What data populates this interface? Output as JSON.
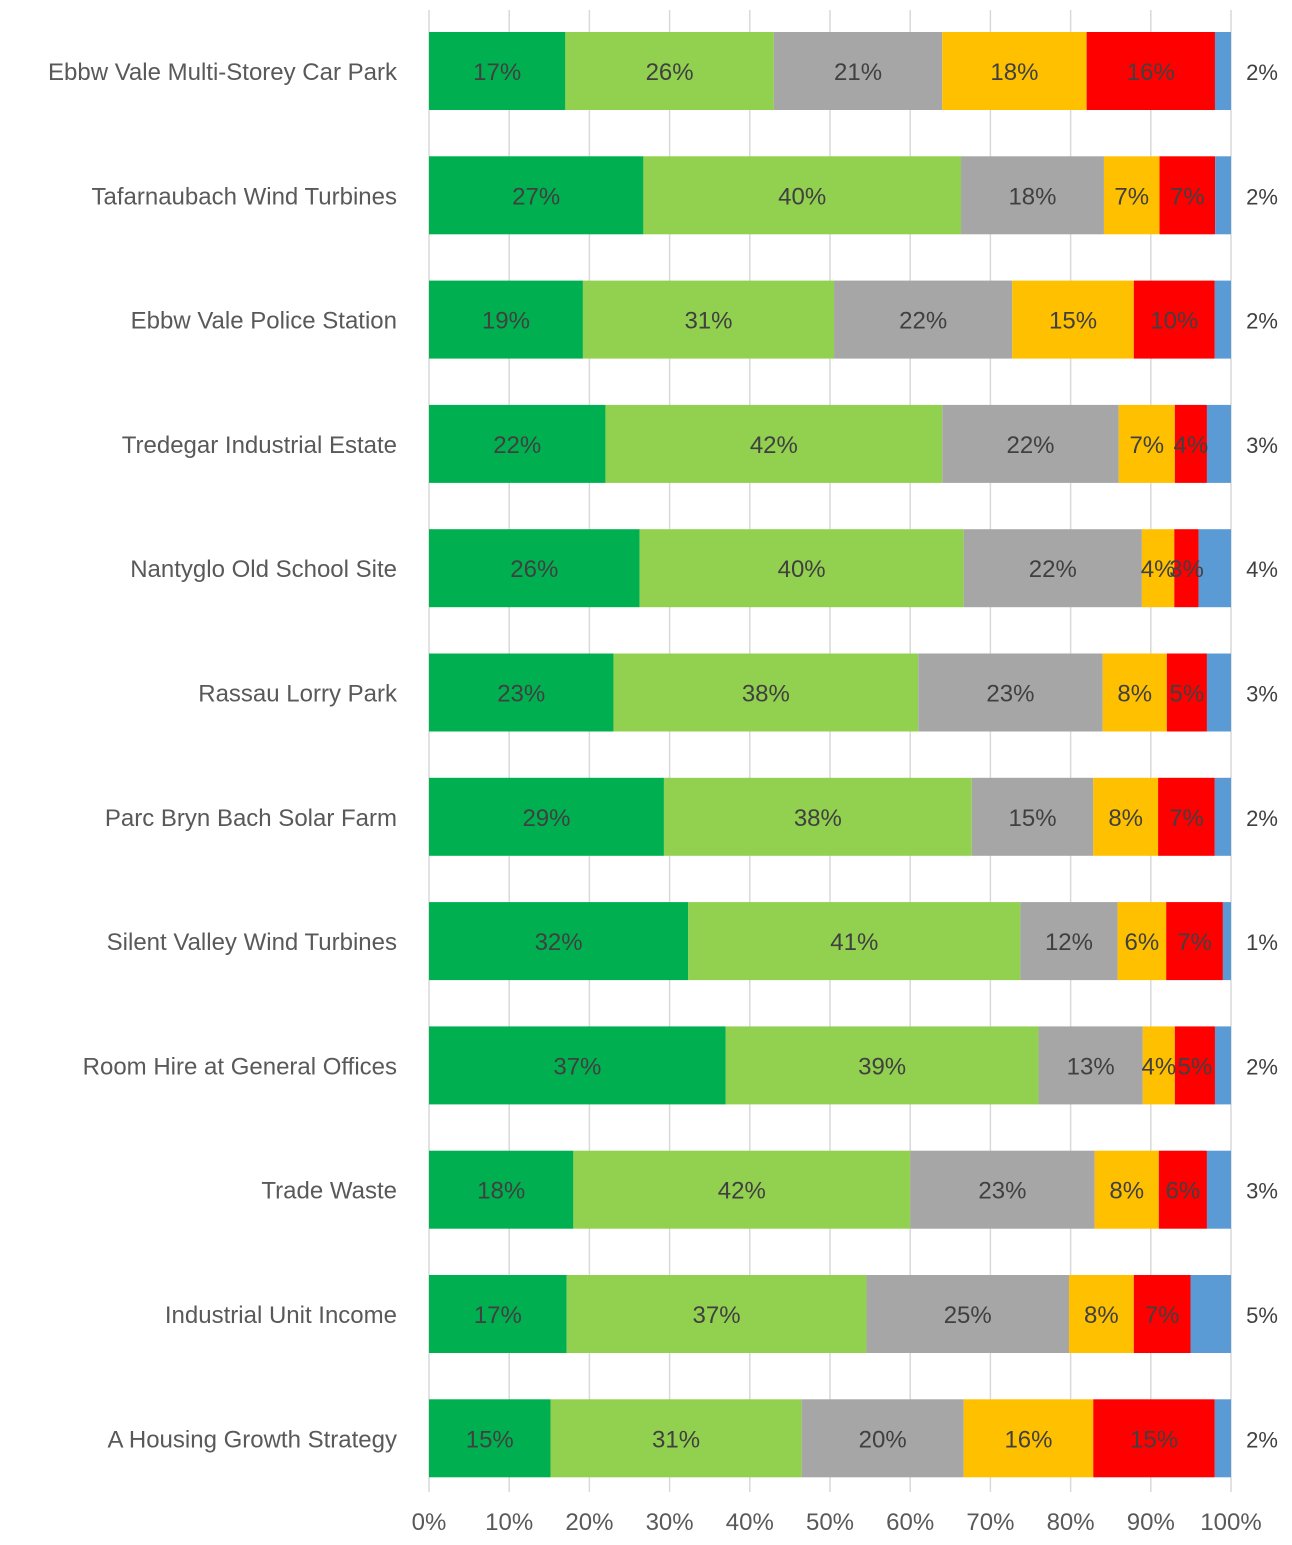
{
  "chart_data": {
    "type": "bar",
    "orientation": "horizontal",
    "stacked": "percent",
    "categories": [
      "Ebbw Vale Multi-Storey Car Park",
      "Tafarnaubach Wind Turbines",
      "Ebbw Vale Police Station",
      "Tredegar Industrial Estate",
      "Nantyglo Old School Site",
      "Rassau Lorry Park",
      "Parc Bryn Bach Solar Farm",
      "Silent Valley Wind Turbines",
      "Room Hire at General Offices",
      "Trade Waste",
      "Industrial Unit Income",
      "A Housing Growth Strategy"
    ],
    "series": [
      {
        "color": "#00b050",
        "values": [
          17,
          27,
          19,
          22,
          26,
          23,
          29,
          32,
          37,
          18,
          17,
          15
        ],
        "labels": [
          "17%",
          "27%",
          "19%",
          "22%",
          "26%",
          "23%",
          "29%",
          "32%",
          "37%",
          "18%",
          "17%",
          "15%"
        ]
      },
      {
        "color": "#92d050",
        "values": [
          26,
          40,
          31,
          42,
          40,
          38,
          38,
          41,
          39,
          42,
          37,
          31
        ],
        "labels": [
          "26%",
          "40%",
          "31%",
          "42%",
          "40%",
          "38%",
          "38%",
          "41%",
          "39%",
          "42%",
          "37%",
          "31%"
        ]
      },
      {
        "color": "#a6a6a6",
        "values": [
          21,
          18,
          22,
          22,
          22,
          23,
          15,
          12,
          13,
          23,
          25,
          20
        ],
        "labels": [
          "21%",
          "18%",
          "22%",
          "22%",
          "22%",
          "23%",
          "15%",
          "12%",
          "13%",
          "23%",
          "25%",
          "20%"
        ]
      },
      {
        "color": "#ffc000",
        "values": [
          18,
          7,
          15,
          7,
          4,
          8,
          8,
          6,
          4,
          8,
          8,
          16
        ],
        "labels": [
          "18%",
          "7%",
          "15%",
          "7%",
          "4%",
          "8%",
          "8%",
          "6%",
          "4%",
          "8%",
          "8%",
          "16%"
        ]
      },
      {
        "color": "#ff0000",
        "values": [
          16,
          7,
          10,
          4,
          3,
          5,
          7,
          7,
          5,
          6,
          7,
          15
        ],
        "labels": [
          "16%",
          "7%",
          "10%",
          "4%",
          "3%",
          "5%",
          "7%",
          "7%",
          "5%",
          "6%",
          "7%",
          "15%"
        ]
      },
      {
        "color": "#5b9bd5",
        "values": [
          2,
          2,
          2,
          3,
          4,
          3,
          2,
          1,
          2,
          3,
          5,
          2
        ],
        "labels": [
          "2%",
          "2%",
          "2%",
          "3%",
          "4%",
          "3%",
          "2%",
          "1%",
          "2%",
          "3%",
          "5%",
          "2%"
        ]
      }
    ],
    "x_ticks": [
      "0%",
      "10%",
      "20%",
      "30%",
      "40%",
      "50%",
      "60%",
      "70%",
      "80%",
      "90%",
      "100%"
    ],
    "xlim": [
      0,
      100
    ],
    "grid": "vertical",
    "legend": "none"
  }
}
